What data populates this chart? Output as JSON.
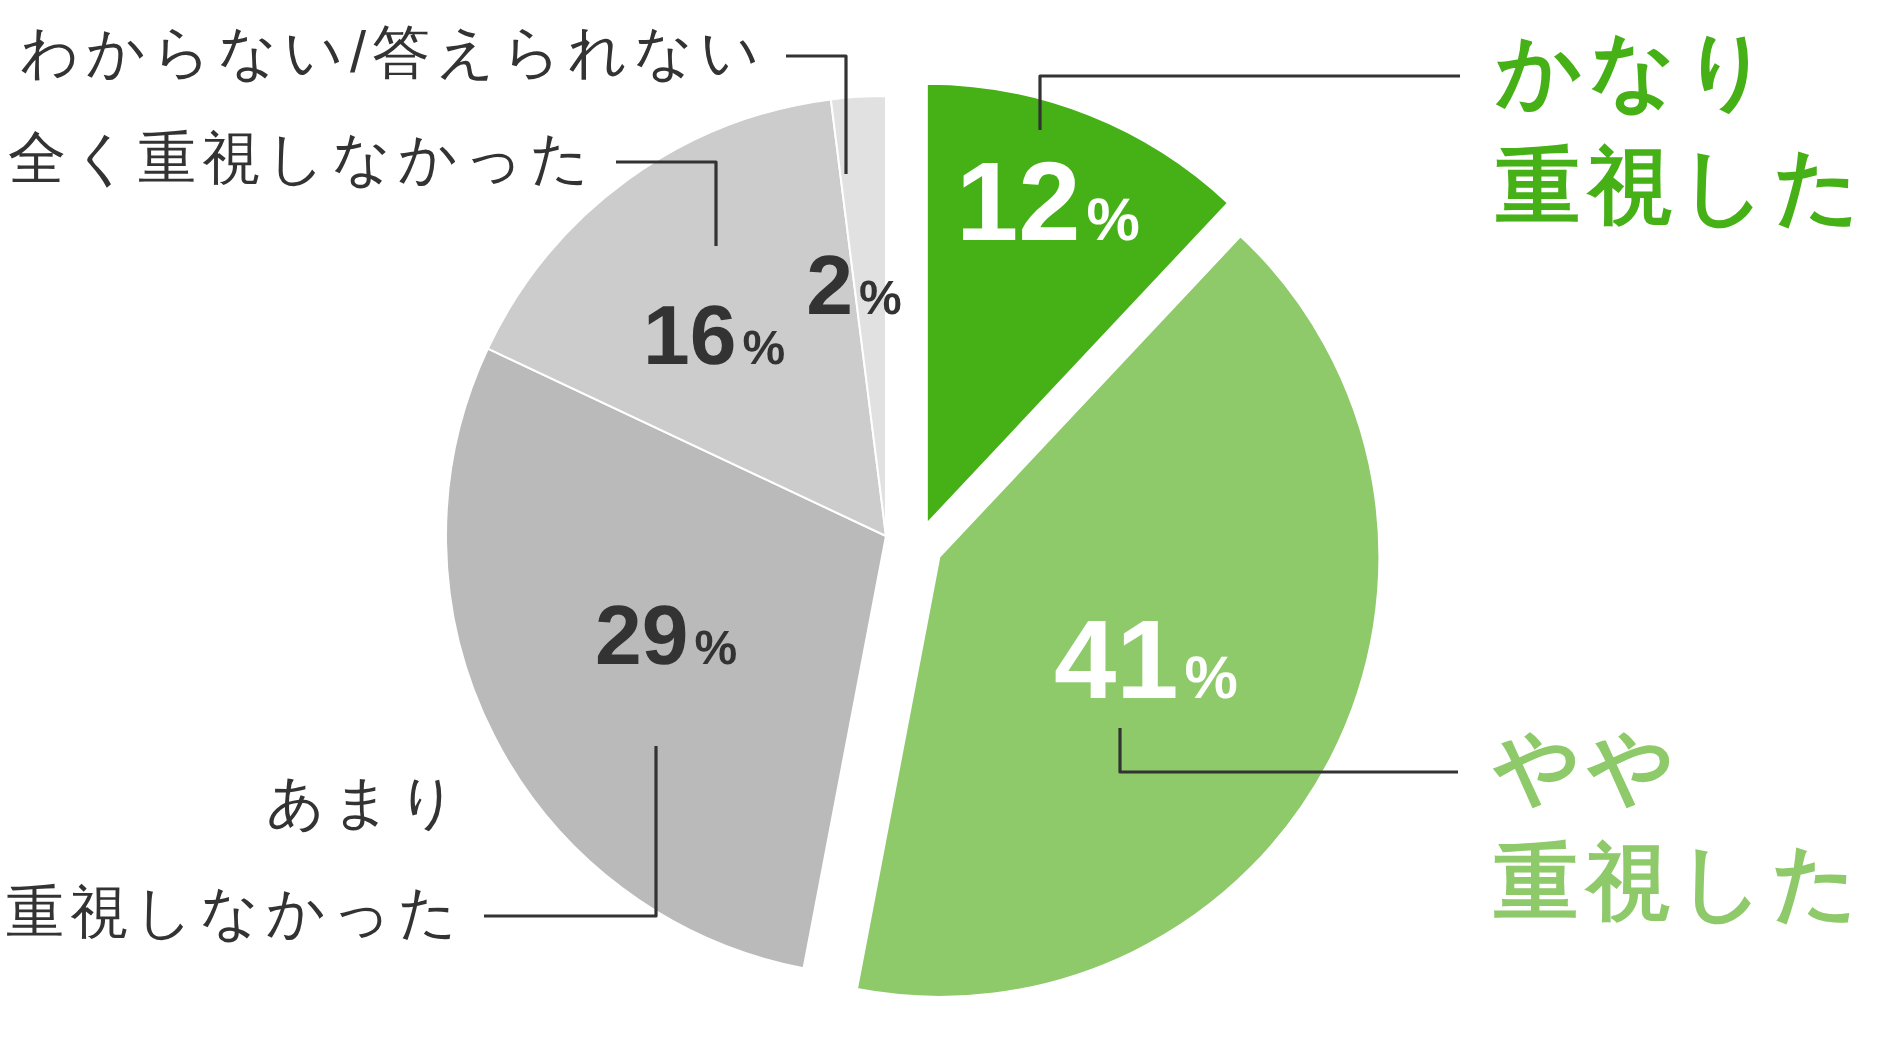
{
  "chart_data": {
    "type": "pie",
    "categories": [
      "かなり重視した",
      "やや重視した",
      "あまり重視しなかった",
      "全く重視しなかった",
      "わからない/答えられない"
    ],
    "values": [
      12,
      41,
      29,
      16,
      2
    ],
    "colors": [
      "#46b017",
      "#8ec96a",
      "#bababa",
      "#cccccc",
      "#e1e1e1"
    ],
    "value_labels": [
      "12%",
      "41%",
      "29%",
      "16%",
      "2%"
    ]
  }
}
